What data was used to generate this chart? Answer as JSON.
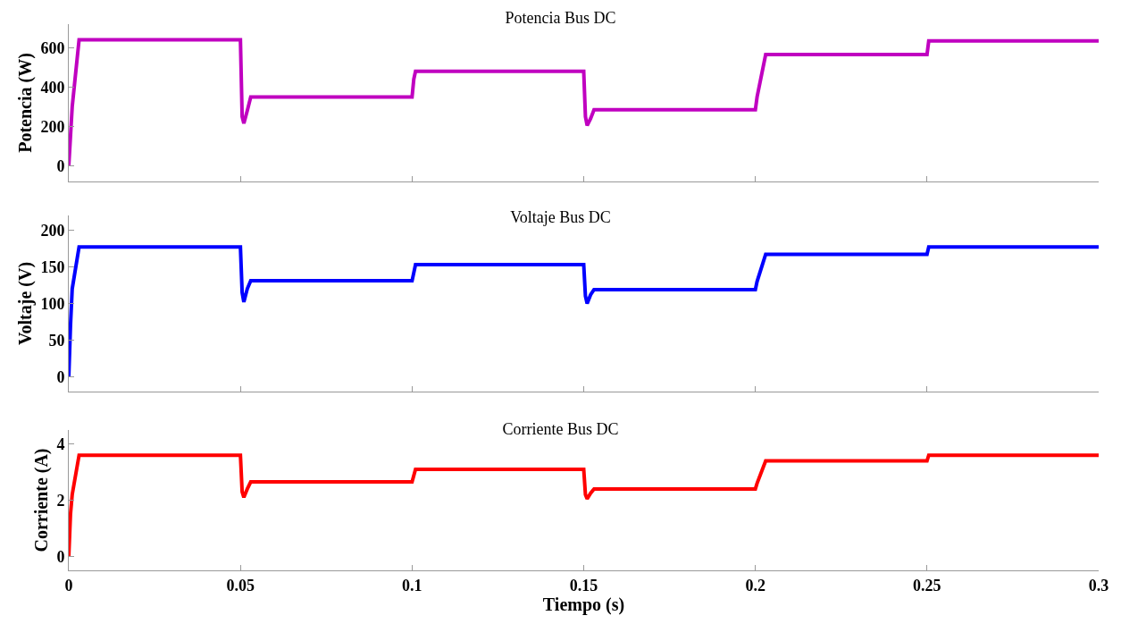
{
  "chart_data": [
    {
      "type": "line",
      "title": "Potencia Bus DC",
      "ylabel": "Potencia (W)",
      "tick_labels": "y",
      "xlim": [
        0,
        0.3
      ],
      "xticks": [
        0,
        0.05,
        0.1,
        0.15,
        0.2,
        0.25,
        0.3
      ],
      "ylim": [
        -80,
        720
      ],
      "yticks": [
        0,
        200,
        400,
        600
      ],
      "x": [
        0,
        0.001,
        0.003,
        0.05,
        0.0505,
        0.051,
        0.052,
        0.053,
        0.1,
        0.1005,
        0.101,
        0.15,
        0.1505,
        0.151,
        0.152,
        0.153,
        0.2,
        0.2005,
        0.203,
        0.25,
        0.2505,
        0.3
      ],
      "series": [
        {
          "color": "#c000c0",
          "values": [
            0,
            300,
            640,
            640,
            250,
            215,
            280,
            350,
            350,
            440,
            480,
            480,
            250,
            205,
            240,
            285,
            285,
            350,
            565,
            565,
            635,
            635
          ]
        }
      ]
    },
    {
      "type": "line",
      "title": "Voltaje Bus DC",
      "ylabel": "Voltaje (V)",
      "tick_labels": "y",
      "xlim": [
        0,
        0.3
      ],
      "xticks": [
        0,
        0.05,
        0.1,
        0.15,
        0.2,
        0.25,
        0.3
      ],
      "ylim": [
        -20,
        220
      ],
      "yticks": [
        0,
        50,
        100,
        150,
        200
      ],
      "x": [
        0,
        0.0005,
        0.001,
        0.003,
        0.05,
        0.0505,
        0.051,
        0.052,
        0.053,
        0.1,
        0.101,
        0.15,
        0.1505,
        0.151,
        0.152,
        0.153,
        0.2,
        0.2005,
        0.203,
        0.25,
        0.2505,
        0.3
      ],
      "series": [
        {
          "color": "#0000ff",
          "values": [
            0,
            70,
            120,
            177,
            177,
            115,
            102,
            120,
            131,
            131,
            153,
            153,
            110,
            100,
            112,
            119,
            119,
            130,
            167,
            167,
            177,
            177
          ]
        }
      ]
    },
    {
      "type": "line",
      "title": "Corriente Bus DC",
      "ylabel": "Corriente (A)",
      "xlabel": "Tiempo (s)",
      "xlim": [
        0,
        0.3
      ],
      "xticks": [
        0,
        0.05,
        0.1,
        0.15,
        0.2,
        0.25,
        0.3
      ],
      "ylim": [
        -0.5,
        4.5
      ],
      "yticks": [
        0,
        2,
        4
      ],
      "x": [
        0,
        0.0005,
        0.001,
        0.003,
        0.05,
        0.0505,
        0.051,
        0.052,
        0.053,
        0.1,
        0.101,
        0.15,
        0.1505,
        0.151,
        0.152,
        0.153,
        0.2,
        0.2005,
        0.203,
        0.25,
        0.2505,
        0.3
      ],
      "series": [
        {
          "color": "#ff0000",
          "values": [
            0,
            1.5,
            2.2,
            3.6,
            3.6,
            2.3,
            2.1,
            2.4,
            2.65,
            2.65,
            3.1,
            3.1,
            2.2,
            2.05,
            2.25,
            2.4,
            2.4,
            2.6,
            3.4,
            3.4,
            3.6,
            3.6
          ]
        }
      ]
    }
  ]
}
